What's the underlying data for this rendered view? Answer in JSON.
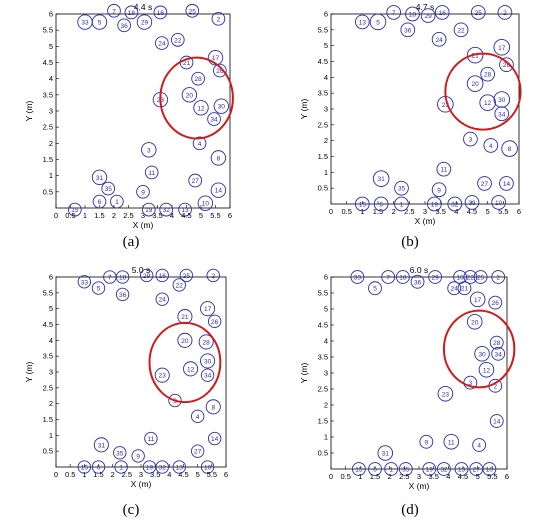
{
  "figure": {
    "panel_letters": [
      "(a)",
      "(b)",
      "(c)",
      "(d)"
    ]
  },
  "colors": {
    "circle": "#2b2bb5",
    "highlight": "#d11a1a",
    "axis": "#000000",
    "grid": "#e6e6e6"
  },
  "chart_data": [
    {
      "type": "scatter",
      "title": "4.4 s",
      "xlabel": "X (m)",
      "ylabel": "Y (m)",
      "xlim": [
        0,
        6
      ],
      "ylim": [
        0,
        6
      ],
      "xticks": [
        "0",
        "0.5",
        "1",
        "1.5",
        "2",
        "2.5",
        "3",
        "3.5",
        "4",
        "4.5",
        "5",
        "5.5",
        "6"
      ],
      "yticks": [
        "0.5",
        "1",
        "1.5",
        "2",
        "2.5",
        "3",
        "3.5",
        "4",
        "4.5",
        "5",
        "5.5",
        "6"
      ],
      "points": [
        {
          "id": "33",
          "x": 1.0,
          "y": 5.75,
          "r": 0.25
        },
        {
          "id": "5",
          "x": 1.5,
          "y": 5.75,
          "r": 0.25
        },
        {
          "id": "7",
          "x": 2.0,
          "y": 6.1,
          "r": 0.22
        },
        {
          "id": "18",
          "x": 2.6,
          "y": 6.05,
          "r": 0.22
        },
        {
          "id": "36",
          "x": 2.35,
          "y": 5.65,
          "r": 0.22
        },
        {
          "id": "29",
          "x": 3.05,
          "y": 5.75,
          "r": 0.25
        },
        {
          "id": "16",
          "x": 3.6,
          "y": 6.05,
          "r": 0.22
        },
        {
          "id": "25",
          "x": 4.7,
          "y": 6.1,
          "r": 0.22
        },
        {
          "id": "2",
          "x": 5.6,
          "y": 5.85,
          "r": 0.22
        },
        {
          "id": "24",
          "x": 3.65,
          "y": 5.1,
          "r": 0.22
        },
        {
          "id": "22",
          "x": 4.2,
          "y": 5.2,
          "r": 0.22
        },
        {
          "id": "21",
          "x": 4.5,
          "y": 4.5,
          "r": 0.22
        },
        {
          "id": "17",
          "x": 5.5,
          "y": 4.65,
          "r": 0.25
        },
        {
          "id": "26",
          "x": 5.65,
          "y": 4.25,
          "r": 0.22
        },
        {
          "id": "28",
          "x": 4.9,
          "y": 4.0,
          "r": 0.22
        },
        {
          "id": "23",
          "x": 3.6,
          "y": 3.35,
          "r": 0.25
        },
        {
          "id": "20",
          "x": 4.6,
          "y": 3.5,
          "r": 0.25
        },
        {
          "id": "12",
          "x": 5.0,
          "y": 3.1,
          "r": 0.25
        },
        {
          "id": "30",
          "x": 5.7,
          "y": 3.15,
          "r": 0.25
        },
        {
          "id": "34",
          "x": 5.45,
          "y": 2.75,
          "r": 0.22
        },
        {
          "id": "4",
          "x": 4.95,
          "y": 2.0,
          "r": 0.22
        },
        {
          "id": "3",
          "x": 3.2,
          "y": 1.8,
          "r": 0.25
        },
        {
          "id": "8",
          "x": 5.6,
          "y": 1.55,
          "r": 0.25
        },
        {
          "id": "11",
          "x": 3.3,
          "y": 1.1,
          "r": 0.22
        },
        {
          "id": "31",
          "x": 1.5,
          "y": 0.95,
          "r": 0.25
        },
        {
          "id": "35",
          "x": 1.8,
          "y": 0.6,
          "r": 0.22
        },
        {
          "id": "9",
          "x": 3.0,
          "y": 0.5,
          "r": 0.22
        },
        {
          "id": "27",
          "x": 4.8,
          "y": 0.85,
          "r": 0.22
        },
        {
          "id": "14",
          "x": 5.6,
          "y": 0.55,
          "r": 0.25
        },
        {
          "id": "6",
          "x": 1.5,
          "y": 0.2,
          "r": 0.22
        },
        {
          "id": "1",
          "x": 2.1,
          "y": 0.2,
          "r": 0.22
        },
        {
          "id": "10",
          "x": 5.15,
          "y": 0.15,
          "r": 0.25
        },
        {
          "id": "15",
          "x": 0.65,
          "y": -0.05,
          "r": 0.22
        },
        {
          "id": "19",
          "x": 3.2,
          "y": -0.05,
          "r": 0.22
        },
        {
          "id": "32",
          "x": 3.8,
          "y": -0.05,
          "r": 0.22
        },
        {
          "id": "13",
          "x": 4.45,
          "y": -0.05,
          "r": 0.22
        }
      ],
      "highlight": {
        "x": 4.85,
        "y": 3.4,
        "r": 1.25
      }
    },
    {
      "type": "scatter",
      "title": "4.7 s",
      "xlabel": "X (m)",
      "ylabel": "Y (m)",
      "xlim": [
        0,
        6
      ],
      "ylim": [
        0,
        6
      ],
      "xticks": [
        "0",
        "0.5",
        "1",
        "1.5",
        "2",
        "2.5",
        "3",
        "3.5",
        "4",
        "4.5",
        "5",
        "5.5",
        "6"
      ],
      "yticks": [
        "0.5",
        "1",
        "1.5",
        "2",
        "2.5",
        "3",
        "3.5",
        "4",
        "4.5",
        "5",
        "5.5",
        "6"
      ],
      "points": [
        {
          "id": "13",
          "x": 1.0,
          "y": 5.75,
          "r": 0.22
        },
        {
          "id": "5",
          "x": 1.5,
          "y": 5.75,
          "r": 0.25
        },
        {
          "id": "7",
          "x": 2.0,
          "y": 6.05,
          "r": 0.22
        },
        {
          "id": "18",
          "x": 2.6,
          "y": 6.0,
          "r": 0.22
        },
        {
          "id": "36",
          "x": 2.45,
          "y": 5.5,
          "r": 0.22
        },
        {
          "id": "29",
          "x": 3.1,
          "y": 5.95,
          "r": 0.22
        },
        {
          "id": "16",
          "x": 3.55,
          "y": 6.05,
          "r": 0.22
        },
        {
          "id": "25",
          "x": 4.7,
          "y": 6.05,
          "r": 0.22
        },
        {
          "id": "2",
          "x": 5.55,
          "y": 6.05,
          "r": 0.22
        },
        {
          "id": "24",
          "x": 3.45,
          "y": 5.2,
          "r": 0.22
        },
        {
          "id": "22",
          "x": 4.15,
          "y": 5.5,
          "r": 0.22
        },
        {
          "id": "21",
          "x": 4.6,
          "y": 4.7,
          "r": 0.25
        },
        {
          "id": "17",
          "x": 5.45,
          "y": 4.95,
          "r": 0.25
        },
        {
          "id": "26",
          "x": 5.6,
          "y": 4.4,
          "r": 0.22
        },
        {
          "id": "28",
          "x": 5.0,
          "y": 4.1,
          "r": 0.22
        },
        {
          "id": "23",
          "x": 3.65,
          "y": 3.15,
          "r": 0.25
        },
        {
          "id": "20",
          "x": 4.6,
          "y": 3.8,
          "r": 0.25
        },
        {
          "id": "12",
          "x": 5.0,
          "y": 3.2,
          "r": 0.25
        },
        {
          "id": "30",
          "x": 5.45,
          "y": 3.3,
          "r": 0.25
        },
        {
          "id": "34",
          "x": 5.45,
          "y": 2.85,
          "r": 0.22
        },
        {
          "id": "3",
          "x": 4.45,
          "y": 2.05,
          "r": 0.22
        },
        {
          "id": "4",
          "x": 5.1,
          "y": 1.85,
          "r": 0.22
        },
        {
          "id": "8",
          "x": 5.7,
          "y": 1.75,
          "r": 0.25
        },
        {
          "id": "11",
          "x": 3.6,
          "y": 1.1,
          "r": 0.22
        },
        {
          "id": "31",
          "x": 1.6,
          "y": 0.8,
          "r": 0.25
        },
        {
          "id": "35",
          "x": 2.25,
          "y": 0.5,
          "r": 0.22
        },
        {
          "id": "9",
          "x": 3.45,
          "y": 0.45,
          "r": 0.22
        },
        {
          "id": "27",
          "x": 4.9,
          "y": 0.65,
          "r": 0.22
        },
        {
          "id": "14",
          "x": 5.6,
          "y": 0.65,
          "r": 0.22
        },
        {
          "id": "15",
          "x": 1.0,
          "y": 0.0,
          "r": 0.22
        },
        {
          "id": "6",
          "x": 1.6,
          "y": 0.0,
          "r": 0.22
        },
        {
          "id": "1",
          "x": 2.25,
          "y": 0.0,
          "r": 0.22
        },
        {
          "id": "19",
          "x": 3.3,
          "y": 0.0,
          "r": 0.22
        },
        {
          "id": "32",
          "x": 3.95,
          "y": 0.0,
          "r": 0.22
        },
        {
          "id": "33",
          "x": 4.5,
          "y": 0.05,
          "r": 0.22
        },
        {
          "id": "10",
          "x": 5.35,
          "y": 0.05,
          "r": 0.22
        }
      ],
      "highlight": {
        "x": 4.85,
        "y": 3.55,
        "r": 1.2
      }
    },
    {
      "type": "scatter",
      "title": "5.0 s",
      "xlabel": "X (m)",
      "ylabel": "Y (m)",
      "xlim": [
        0,
        6
      ],
      "ylim": [
        0,
        6
      ],
      "xticks": [
        "0",
        "0.5",
        "1",
        "1.5",
        "2",
        "2.5",
        "3",
        "3.5",
        "4",
        "4.5",
        "5",
        "5.5",
        "6"
      ],
      "yticks": [
        "0.5",
        "1",
        "1.5",
        "2",
        "2.5",
        "3",
        "3.5",
        "4",
        "4.5",
        "5",
        "5.5",
        "6"
      ],
      "points": [
        {
          "id": "33",
          "x": 1.0,
          "y": 5.85,
          "r": 0.22
        },
        {
          "id": "5",
          "x": 1.5,
          "y": 5.65,
          "r": 0.22
        },
        {
          "id": "7",
          "x": 1.9,
          "y": 6.0,
          "r": 0.22
        },
        {
          "id": "18",
          "x": 2.35,
          "y": 6.0,
          "r": 0.22
        },
        {
          "id": "36",
          "x": 2.35,
          "y": 5.45,
          "r": 0.22
        },
        {
          "id": "29",
          "x": 3.2,
          "y": 6.05,
          "r": 0.22
        },
        {
          "id": "16",
          "x": 3.75,
          "y": 6.05,
          "r": 0.22
        },
        {
          "id": "25",
          "x": 4.6,
          "y": 6.05,
          "r": 0.22
        },
        {
          "id": "2",
          "x": 5.55,
          "y": 6.05,
          "r": 0.22
        },
        {
          "id": "24",
          "x": 3.75,
          "y": 5.3,
          "r": 0.22
        },
        {
          "id": "22",
          "x": 4.35,
          "y": 5.75,
          "r": 0.22
        },
        {
          "id": "21",
          "x": 4.55,
          "y": 4.75,
          "r": 0.25
        },
        {
          "id": "17",
          "x": 5.35,
          "y": 5.0,
          "r": 0.25
        },
        {
          "id": "26",
          "x": 5.6,
          "y": 4.6,
          "r": 0.22
        },
        {
          "id": "20",
          "x": 4.55,
          "y": 4.0,
          "r": 0.25
        },
        {
          "id": "28",
          "x": 5.3,
          "y": 3.95,
          "r": 0.25
        },
        {
          "id": "30",
          "x": 5.35,
          "y": 3.35,
          "r": 0.25
        },
        {
          "id": "12",
          "x": 4.75,
          "y": 3.1,
          "r": 0.25
        },
        {
          "id": "34",
          "x": 5.35,
          "y": 2.9,
          "r": 0.22
        },
        {
          "id": "23",
          "x": 3.75,
          "y": 2.9,
          "r": 0.25
        },
        {
          "id": "3",
          "x": 4.2,
          "y": 2.1,
          "r": 0.22
        },
        {
          "id": "8",
          "x": 5.55,
          "y": 1.9,
          "r": 0.25
        },
        {
          "id": "4",
          "x": 5.0,
          "y": 1.6,
          "r": 0.22
        },
        {
          "id": "11",
          "x": 3.35,
          "y": 0.9,
          "r": 0.22
        },
        {
          "id": "31",
          "x": 1.6,
          "y": 0.7,
          "r": 0.25
        },
        {
          "id": "35",
          "x": 2.25,
          "y": 0.45,
          "r": 0.22
        },
        {
          "id": "9",
          "x": 2.9,
          "y": 0.35,
          "r": 0.22
        },
        {
          "id": "27",
          "x": 5.0,
          "y": 0.5,
          "r": 0.22
        },
        {
          "id": "14",
          "x": 5.6,
          "y": 0.9,
          "r": 0.22
        },
        {
          "id": "15",
          "x": 1.0,
          "y": 0.0,
          "r": 0.22
        },
        {
          "id": "6",
          "x": 1.5,
          "y": 0.0,
          "r": 0.22
        },
        {
          "id": "1",
          "x": 2.3,
          "y": 0.0,
          "r": 0.22
        },
        {
          "id": "19",
          "x": 3.3,
          "y": 0.0,
          "r": 0.22
        },
        {
          "id": "32",
          "x": 3.75,
          "y": 0.0,
          "r": 0.22
        },
        {
          "id": "13",
          "x": 4.35,
          "y": 0.0,
          "r": 0.22
        },
        {
          "id": "10",
          "x": 5.35,
          "y": 0.0,
          "r": 0.22
        }
      ],
      "highlight": {
        "x": 4.55,
        "y": 3.3,
        "r": 1.25
      }
    },
    {
      "type": "scatter",
      "title": "6.0 s",
      "xlabel": "X (m)",
      "ylabel": "Y (m)",
      "xlim": [
        0,
        6
      ],
      "ylim": [
        0,
        6
      ],
      "xticks": [
        "0",
        "0.5",
        "1",
        "1.5",
        "2",
        "2.5",
        "3",
        "3.5",
        "4",
        "4.5",
        "5",
        "5.5",
        "6"
      ],
      "yticks": [
        "0.5",
        "1",
        "1.5",
        "2",
        "2.5",
        "3",
        "3.5",
        "4",
        "4.5",
        "5",
        "5.5",
        "6"
      ],
      "points": [
        {
          "id": "33",
          "x": 0.9,
          "y": 6.0,
          "r": 0.22
        },
        {
          "id": "5",
          "x": 1.5,
          "y": 5.65,
          "r": 0.22
        },
        {
          "id": "7",
          "x": 1.95,
          "y": 6.0,
          "r": 0.22
        },
        {
          "id": "18",
          "x": 2.45,
          "y": 6.0,
          "r": 0.22
        },
        {
          "id": "36",
          "x": 2.95,
          "y": 5.85,
          "r": 0.22
        },
        {
          "id": "29",
          "x": 3.55,
          "y": 6.0,
          "r": 0.22
        },
        {
          "id": "16",
          "x": 4.4,
          "y": 6.0,
          "r": 0.22
        },
        {
          "id": "22",
          "x": 4.75,
          "y": 6.0,
          "r": 0.22
        },
        {
          "id": "25",
          "x": 5.1,
          "y": 6.0,
          "r": 0.22
        },
        {
          "id": "2",
          "x": 5.7,
          "y": 6.0,
          "r": 0.22
        },
        {
          "id": "24",
          "x": 4.2,
          "y": 5.65,
          "r": 0.22
        },
        {
          "id": "21",
          "x": 4.55,
          "y": 5.65,
          "r": 0.22
        },
        {
          "id": "17",
          "x": 5.0,
          "y": 5.3,
          "r": 0.25
        },
        {
          "id": "26",
          "x": 5.6,
          "y": 5.2,
          "r": 0.22
        },
        {
          "id": "20",
          "x": 4.9,
          "y": 4.6,
          "r": 0.25
        },
        {
          "id": "28",
          "x": 5.65,
          "y": 3.95,
          "r": 0.22
        },
        {
          "id": "30",
          "x": 5.15,
          "y": 3.6,
          "r": 0.25
        },
        {
          "id": "34",
          "x": 5.7,
          "y": 3.6,
          "r": 0.22
        },
        {
          "id": "12",
          "x": 5.3,
          "y": 3.1,
          "r": 0.25
        },
        {
          "id": "3",
          "x": 4.75,
          "y": 2.7,
          "r": 0.22
        },
        {
          "id": "2",
          "x": 5.6,
          "y": 2.6,
          "r": 0.22
        },
        {
          "id": "23",
          "x": 3.9,
          "y": 2.35,
          "r": 0.25
        },
        {
          "id": "14",
          "x": 5.65,
          "y": 1.5,
          "r": 0.22
        },
        {
          "id": "9",
          "x": 3.25,
          "y": 0.85,
          "r": 0.22
        },
        {
          "id": "11",
          "x": 4.1,
          "y": 0.85,
          "r": 0.25
        },
        {
          "id": "4",
          "x": 5.05,
          "y": 0.75,
          "r": 0.22
        },
        {
          "id": "31",
          "x": 1.85,
          "y": 0.5,
          "r": 0.25
        },
        {
          "id": "15",
          "x": 0.95,
          "y": 0.0,
          "r": 0.22
        },
        {
          "id": "6",
          "x": 1.5,
          "y": 0.0,
          "r": 0.22
        },
        {
          "id": "1",
          "x": 2.05,
          "y": 0.0,
          "r": 0.22
        },
        {
          "id": "35",
          "x": 2.55,
          "y": 0.0,
          "r": 0.22
        },
        {
          "id": "19",
          "x": 3.35,
          "y": 0.0,
          "r": 0.22
        },
        {
          "id": "32",
          "x": 3.85,
          "y": 0.0,
          "r": 0.22
        },
        {
          "id": "13",
          "x": 4.45,
          "y": 0.0,
          "r": 0.22
        },
        {
          "id": "27",
          "x": 4.95,
          "y": 0.0,
          "r": 0.22
        },
        {
          "id": "10",
          "x": 5.4,
          "y": 0.0,
          "r": 0.22
        }
      ],
      "highlight": {
        "x": 5.05,
        "y": 3.75,
        "r": 1.2
      }
    }
  ]
}
